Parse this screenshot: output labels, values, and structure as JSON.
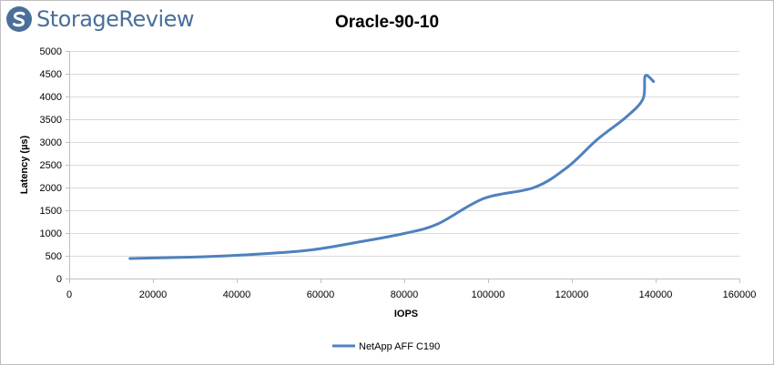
{
  "brand": {
    "name": "StorageReview",
    "color": "#4a6f9a"
  },
  "chart_data": {
    "type": "line",
    "title": "Oracle-90-10",
    "xlabel": "IOPS",
    "ylabel": "Latency (µs)",
    "xlim": [
      0,
      160000
    ],
    "ylim": [
      0,
      5000
    ],
    "xticks": [
      0,
      20000,
      40000,
      60000,
      80000,
      100000,
      120000,
      140000,
      160000
    ],
    "yticks": [
      0,
      500,
      1000,
      1500,
      2000,
      2500,
      3000,
      3500,
      4000,
      4500,
      5000
    ],
    "grid": true,
    "legend_position": "bottom",
    "series": [
      {
        "name": "NetApp AFF C190",
        "color": "#4f81bd",
        "points": [
          [
            14500,
            440
          ],
          [
            29000,
            470
          ],
          [
            42000,
            520
          ],
          [
            57000,
            620
          ],
          [
            69000,
            800
          ],
          [
            80000,
            990
          ],
          [
            88000,
            1200
          ],
          [
            99000,
            1760
          ],
          [
            111000,
            2000
          ],
          [
            119000,
            2450
          ],
          [
            126000,
            3050
          ],
          [
            133000,
            3550
          ],
          [
            137000,
            3950
          ],
          [
            137500,
            4450
          ],
          [
            139500,
            4330
          ]
        ]
      }
    ]
  }
}
